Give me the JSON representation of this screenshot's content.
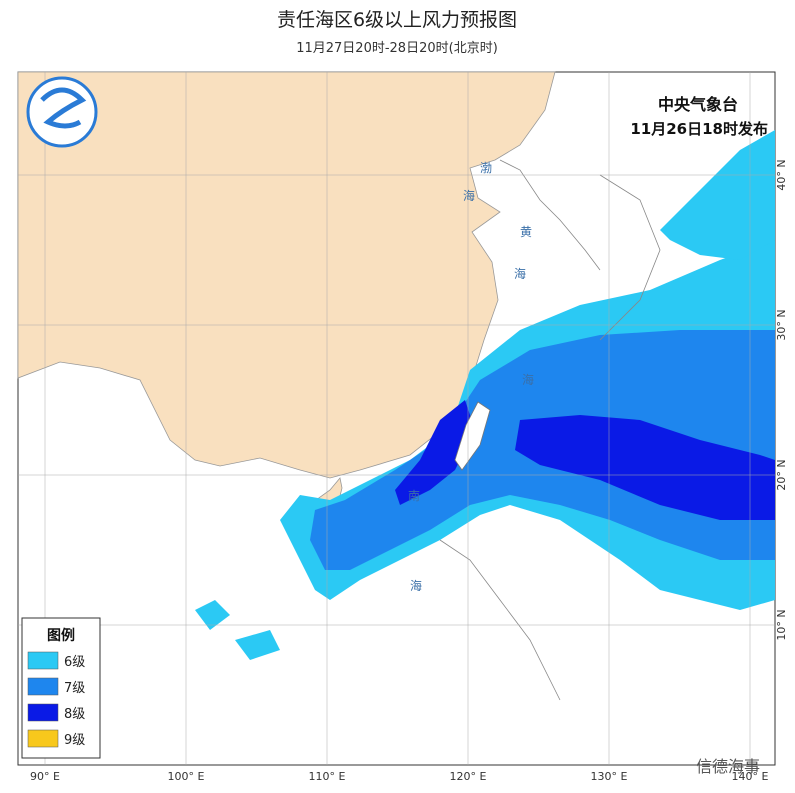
{
  "header": {
    "title": "责任海区6级以上风力预报图",
    "subtitle": "11月27日20时-28日20时(北京时)"
  },
  "issuer": {
    "name": "中央气象台",
    "time": "11月26日18时发布"
  },
  "legend": {
    "title": "图例",
    "items": [
      {
        "label": "6级",
        "color": "#2bc9f4"
      },
      {
        "label": "7级",
        "color": "#1e86ee"
      },
      {
        "label": "8级",
        "color": "#0a1ae6"
      },
      {
        "label": "9级",
        "color": "#f8c81c"
      }
    ]
  },
  "lon_labels": [
    "90° E",
    "100° E",
    "110° E",
    "120° E",
    "130° E",
    "140° E"
  ],
  "lat_labels": [
    "40° N",
    "30° N",
    "20° N",
    "10° N"
  ],
  "sea_labels": [
    "渤",
    "海",
    "黄",
    "海",
    "海",
    "南",
    "海"
  ],
  "watermark": "信德海事"
}
